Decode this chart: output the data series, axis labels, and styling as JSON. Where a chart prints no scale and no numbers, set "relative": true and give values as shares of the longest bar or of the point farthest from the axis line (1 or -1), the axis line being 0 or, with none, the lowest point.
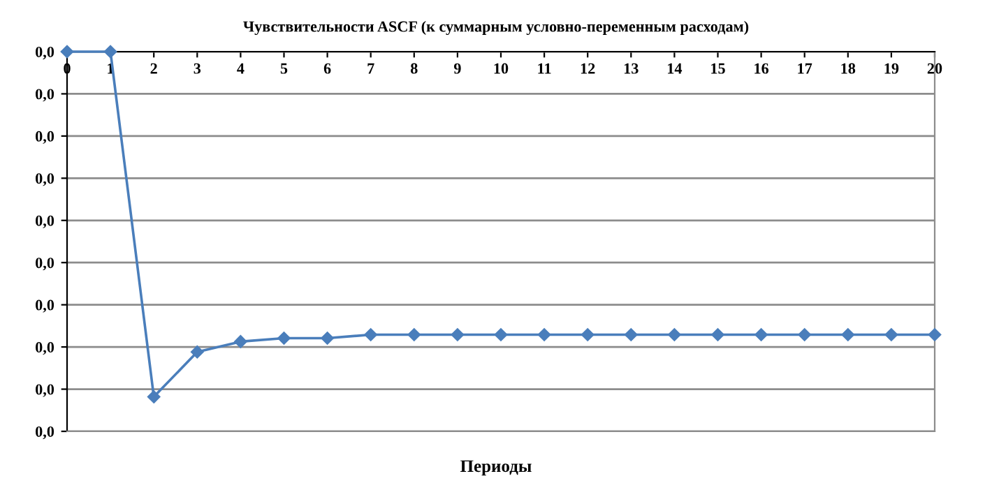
{
  "chart_data": {
    "type": "line",
    "title": "Чувствительности ASCF (к суммарным условно-переменным расходам)",
    "xlabel": "Периоды",
    "categories": [
      "0",
      "1",
      "2",
      "3",
      "4",
      "5",
      "6",
      "7",
      "8",
      "9",
      "10",
      "11",
      "12",
      "13",
      "14",
      "15",
      "16",
      "17",
      "18",
      "19",
      "20"
    ],
    "relative": true,
    "series": [
      {
        "color": "#4a7ebb",
        "values": [
          0,
          0,
          -1,
          -0.87,
          -0.84,
          -0.83,
          -0.83,
          -0.82,
          -0.82,
          -0.82,
          -0.82,
          -0.82,
          -0.82,
          -0.82,
          -0.82,
          -0.82,
          -0.82,
          -0.82,
          -0.82,
          -0.82,
          -0.82
        ]
      }
    ],
    "annotations": [
      "0,0",
      "0,0",
      "0,0",
      "0,0",
      "0,0",
      "0,0",
      "0,0",
      "0,0",
      "0,0",
      "0,0"
    ],
    "grid": "y",
    "marker": "diamond",
    "line_style": "solid",
    "legend": false
  }
}
